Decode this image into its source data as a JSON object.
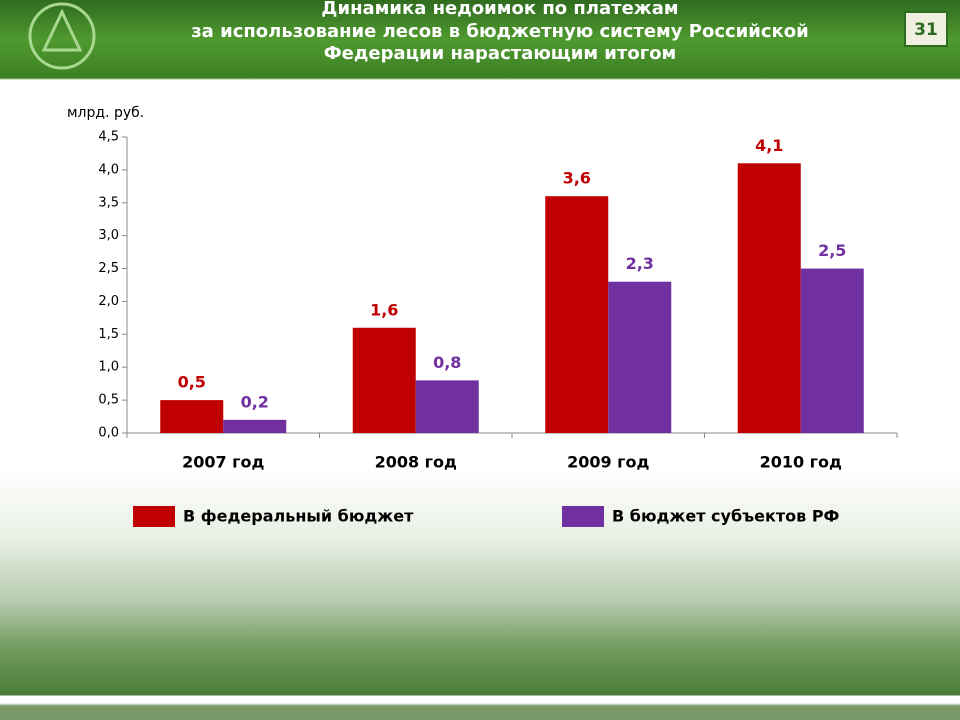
{
  "chart_data": {
    "type": "bar",
    "title": [
      "Динамика недоимок по платежам",
      "за использование лесов в бюджетную систему Российской",
      "Федерации нарастающим итогом"
    ],
    "slide_number": "31",
    "y_label": "млрд. руб.",
    "categories": [
      "2007 год",
      "2008 год",
      "2009 год",
      "2010 год"
    ],
    "series": [
      {
        "name": "В федеральный бюджет",
        "color": "#c00000",
        "values": [
          0.5,
          1.6,
          3.6,
          4.1
        ],
        "value_labels": [
          "0,5",
          "1,6",
          "3,6",
          "4,1"
        ]
      },
      {
        "name": "В бюджет субъектов РФ",
        "color": "#7030a0",
        "values": [
          0.2,
          0.8,
          2.3,
          2.5
        ],
        "value_labels": [
          "0,2",
          "0,8",
          "2,3",
          "2,5"
        ]
      }
    ],
    "ylim": [
      0,
      4.5
    ],
    "yticks": [
      {
        "value": 0,
        "label": "0,0"
      },
      {
        "value": 0.5,
        "label": "0,5"
      },
      {
        "value": 1,
        "label": "1,0"
      },
      {
        "value": 1.5,
        "label": "1,5"
      },
      {
        "value": 2,
        "label": "2,0"
      },
      {
        "value": 2.5,
        "label": "2,5"
      },
      {
        "value": 3,
        "label": "3,0"
      },
      {
        "value": 3.5,
        "label": "3,5"
      },
      {
        "value": 4,
        "label": "4,0"
      },
      {
        "value": 4.5,
        "label": "4,5"
      }
    ],
    "grid": false
  }
}
